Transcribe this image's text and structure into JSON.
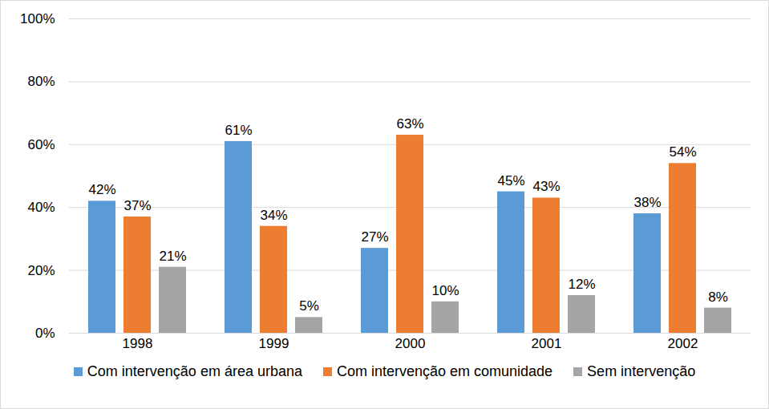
{
  "chart_data": {
    "type": "bar",
    "categories": [
      "1998",
      "1999",
      "2000",
      "2001",
      "2002"
    ],
    "series": [
      {
        "name": "Com intervenção em área urbana",
        "color": "#5B9BD5",
        "values": [
          42,
          61,
          27,
          45,
          38
        ],
        "value_labels": [
          "42%",
          "61%",
          "27%",
          "45%",
          "38%"
        ]
      },
      {
        "name": "Com intervenção em comunidade",
        "color": "#ED7D31",
        "values": [
          37,
          34,
          63,
          43,
          54
        ],
        "value_labels": [
          "37%",
          "34%",
          "63%",
          "43%",
          "54%"
        ]
      },
      {
        "name": "Sem intervenção",
        "color": "#A5A5A5",
        "values": [
          21,
          5,
          10,
          12,
          8
        ],
        "value_labels": [
          "21%",
          "5%",
          "10%",
          "12%",
          "8%"
        ]
      }
    ],
    "ylim": [
      0,
      100
    ],
    "yticks": [
      {
        "value": 0,
        "label": "0%"
      },
      {
        "value": 20,
        "label": "20%"
      },
      {
        "value": 40,
        "label": "40%"
      },
      {
        "value": 60,
        "label": "60%"
      },
      {
        "value": 80,
        "label": "80%"
      },
      {
        "value": 100,
        "label": "100%"
      }
    ],
    "grid": true,
    "legend": "bottom",
    "data_labels": true
  }
}
